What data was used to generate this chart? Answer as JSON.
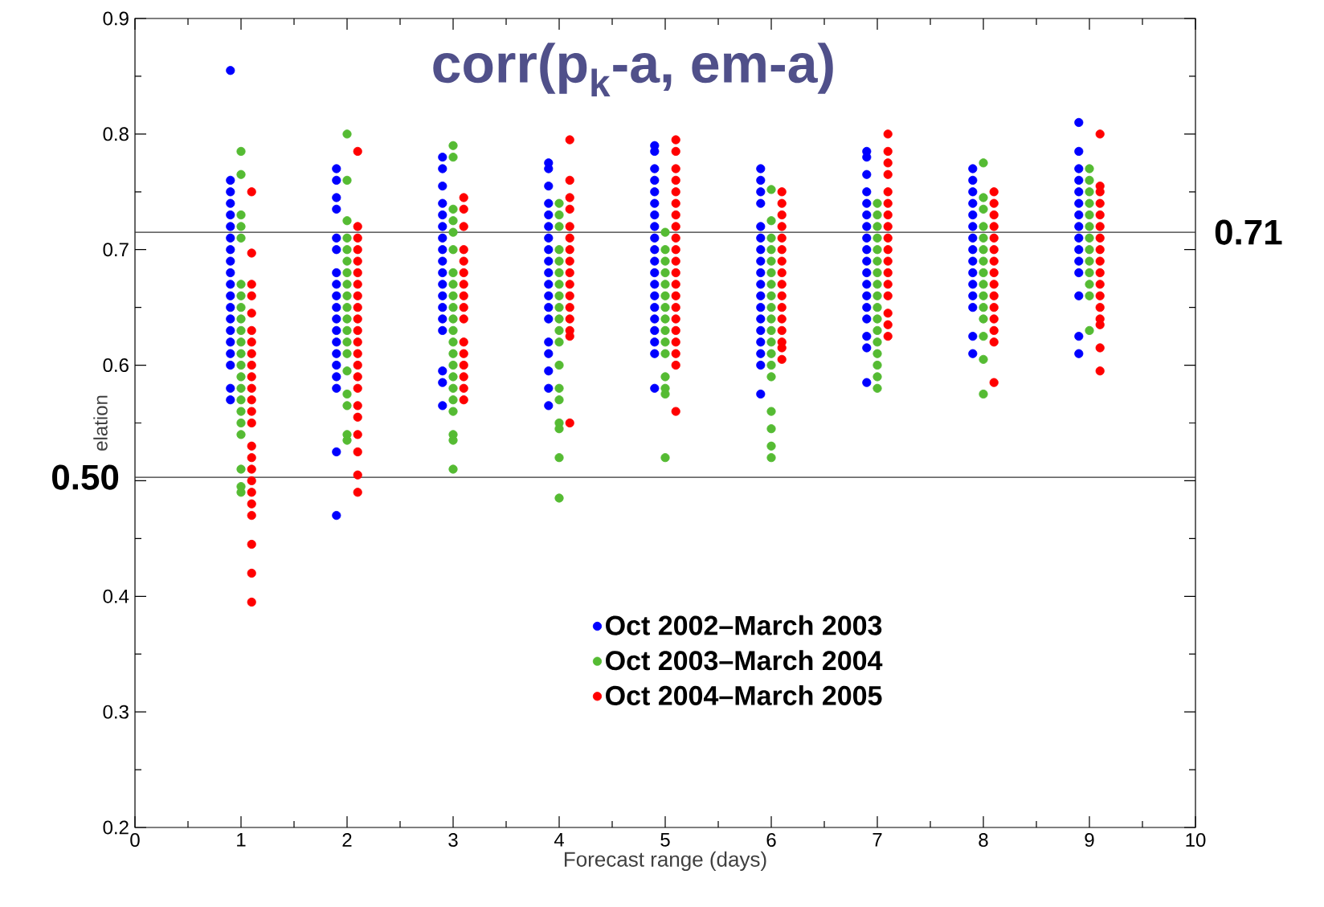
{
  "chart_data": {
    "type": "scatter",
    "title": "corr(p$_{k}$-a, em-a)",
    "xlabel": "Forecast range (days)",
    "ylabel": "elation",
    "xlim": [
      0,
      10
    ],
    "ylim": [
      0.2,
      0.9
    ],
    "xticks": [
      0,
      1,
      2,
      3,
      4,
      5,
      6,
      7,
      8,
      9,
      10
    ],
    "yticks": [
      0.2,
      0.3,
      0.4,
      {
        "value": 0.5,
        "label": null
      },
      0.6,
      0.7,
      0.8,
      0.9
    ],
    "marker": "circle",
    "legend": "bottom",
    "ref_lines": [
      {
        "axis": "y",
        "value": 0.715,
        "label": "0.71"
      },
      {
        "axis": "y",
        "value": 0.503,
        "label": "0.50"
      }
    ],
    "series": [
      {
        "name": "Oct 2002–March 2003",
        "color": "#0000ff",
        "x": [
          0.9,
          0.9,
          0.9,
          0.9,
          0.9,
          0.9,
          0.9,
          0.9,
          0.9,
          0.9,
          0.9,
          0.9,
          0.9,
          0.9,
          0.9,
          0.9,
          0.9,
          0.9,
          0.9,
          0.9,
          1.9,
          1.9,
          1.9,
          1.9,
          1.9,
          1.9,
          1.9,
          1.9,
          1.9,
          1.9,
          1.9,
          1.9,
          1.9,
          1.9,
          1.9,
          1.9,
          1.9,
          1.9,
          1.9,
          2.9,
          2.9,
          2.9,
          2.9,
          2.9,
          2.9,
          2.9,
          2.9,
          2.9,
          2.9,
          2.9,
          2.9,
          2.9,
          2.9,
          2.9,
          2.9,
          2.9,
          2.9,
          3.9,
          3.9,
          3.9,
          3.9,
          3.9,
          3.9,
          3.9,
          3.9,
          3.9,
          3.9,
          3.9,
          3.9,
          3.9,
          3.9,
          3.9,
          3.9,
          3.9,
          3.9,
          3.9,
          4.9,
          4.9,
          4.9,
          4.9,
          4.9,
          4.9,
          4.9,
          4.9,
          4.9,
          4.9,
          4.9,
          4.9,
          4.9,
          4.9,
          4.9,
          4.9,
          4.9,
          4.9,
          4.9,
          4.9,
          5.9,
          5.9,
          5.9,
          5.9,
          5.9,
          5.9,
          5.9,
          5.9,
          5.9,
          5.9,
          5.9,
          5.9,
          5.9,
          5.9,
          5.9,
          5.9,
          5.9,
          5.9,
          6.9,
          6.9,
          6.9,
          6.9,
          6.9,
          6.9,
          6.9,
          6.9,
          6.9,
          6.9,
          6.9,
          6.9,
          6.9,
          6.9,
          6.9,
          6.9,
          6.9,
          6.9,
          7.9,
          7.9,
          7.9,
          7.9,
          7.9,
          7.9,
          7.9,
          7.9,
          7.9,
          7.9,
          7.9,
          7.9,
          7.9,
          7.9,
          7.9,
          8.9,
          8.9,
          8.9,
          8.9,
          8.9,
          8.9,
          8.9,
          8.9,
          8.9,
          8.9,
          8.9,
          8.9,
          8.9,
          8.9,
          8.9
        ],
        "values": [
          0.855,
          0.76,
          0.75,
          0.74,
          0.73,
          0.72,
          0.71,
          0.7,
          0.69,
          0.68,
          0.67,
          0.66,
          0.65,
          0.64,
          0.63,
          0.62,
          0.61,
          0.6,
          0.58,
          0.57,
          0.77,
          0.76,
          0.745,
          0.735,
          0.71,
          0.7,
          0.68,
          0.67,
          0.66,
          0.65,
          0.64,
          0.63,
          0.62,
          0.61,
          0.6,
          0.59,
          0.58,
          0.525,
          0.47,
          0.78,
          0.77,
          0.755,
          0.74,
          0.73,
          0.72,
          0.71,
          0.7,
          0.69,
          0.68,
          0.67,
          0.66,
          0.65,
          0.64,
          0.63,
          0.595,
          0.585,
          0.565,
          0.775,
          0.77,
          0.755,
          0.74,
          0.73,
          0.72,
          0.71,
          0.7,
          0.69,
          0.68,
          0.67,
          0.66,
          0.65,
          0.64,
          0.62,
          0.61,
          0.595,
          0.58,
          0.565,
          0.79,
          0.785,
          0.77,
          0.76,
          0.75,
          0.74,
          0.73,
          0.72,
          0.71,
          0.7,
          0.69,
          0.68,
          0.67,
          0.66,
          0.65,
          0.64,
          0.63,
          0.62,
          0.61,
          0.58,
          0.77,
          0.76,
          0.75,
          0.74,
          0.72,
          0.71,
          0.7,
          0.69,
          0.68,
          0.67,
          0.66,
          0.65,
          0.64,
          0.63,
          0.62,
          0.61,
          0.6,
          0.575,
          0.785,
          0.78,
          0.765,
          0.75,
          0.74,
          0.73,
          0.72,
          0.71,
          0.7,
          0.69,
          0.68,
          0.67,
          0.66,
          0.65,
          0.64,
          0.625,
          0.615,
          0.585,
          0.77,
          0.76,
          0.75,
          0.74,
          0.73,
          0.72,
          0.71,
          0.7,
          0.69,
          0.68,
          0.67,
          0.66,
          0.65,
          0.625,
          0.61,
          0.81,
          0.785,
          0.77,
          0.76,
          0.75,
          0.74,
          0.73,
          0.72,
          0.71,
          0.7,
          0.69,
          0.68,
          0.66,
          0.625,
          0.61
        ]
      },
      {
        "name": "Oct 2003–March 2004",
        "color": "#55bb33",
        "x": [
          1,
          1,
          1,
          1,
          1,
          1,
          1,
          1,
          1,
          1,
          1,
          1,
          1,
          1,
          1,
          1,
          1,
          1,
          1,
          1,
          1,
          1,
          2,
          2,
          2,
          2,
          2,
          2,
          2,
          2,
          2,
          2,
          2,
          2,
          2,
          2,
          2,
          2,
          2,
          2,
          2,
          3,
          3,
          3,
          3,
          3,
          3,
          3,
          3,
          3,
          3,
          3,
          3,
          3,
          3,
          3,
          3,
          3,
          3,
          3,
          3,
          3,
          3,
          4,
          4,
          4,
          4,
          4,
          4,
          4,
          4,
          4,
          4,
          4,
          4,
          4,
          4,
          4,
          4,
          4,
          4,
          4,
          5,
          5,
          5,
          5,
          5,
          5,
          5,
          5,
          5,
          5,
          5,
          5,
          5,
          5,
          5,
          6,
          6,
          6,
          6,
          6,
          6,
          6,
          6,
          6,
          6,
          6,
          6,
          6,
          6,
          6,
          6,
          6,
          6,
          6,
          7,
          7,
          7,
          7,
          7,
          7,
          7,
          7,
          7,
          7,
          7,
          7,
          7,
          7,
          7,
          7,
          7,
          8,
          8,
          8,
          8,
          8,
          8,
          8,
          8,
          8,
          8,
          8,
          8,
          8,
          8,
          8,
          9,
          9,
          9,
          9,
          9,
          9,
          9,
          9,
          9,
          9,
          9,
          9,
          9
        ],
        "values": [
          0.785,
          0.765,
          0.73,
          0.72,
          0.71,
          0.67,
          0.66,
          0.65,
          0.64,
          0.63,
          0.62,
          0.61,
          0.6,
          0.59,
          0.58,
          0.57,
          0.56,
          0.55,
          0.54,
          0.51,
          0.495,
          0.49,
          0.8,
          0.76,
          0.725,
          0.71,
          0.7,
          0.69,
          0.68,
          0.67,
          0.66,
          0.65,
          0.64,
          0.63,
          0.62,
          0.61,
          0.595,
          0.575,
          0.565,
          0.54,
          0.535,
          0.79,
          0.78,
          0.735,
          0.725,
          0.715,
          0.7,
          0.68,
          0.67,
          0.66,
          0.65,
          0.64,
          0.63,
          0.62,
          0.61,
          0.6,
          0.59,
          0.58,
          0.57,
          0.56,
          0.54,
          0.535,
          0.51,
          0.74,
          0.73,
          0.72,
          0.7,
          0.69,
          0.68,
          0.67,
          0.66,
          0.65,
          0.64,
          0.63,
          0.62,
          0.6,
          0.58,
          0.57,
          0.55,
          0.545,
          0.52,
          0.485,
          0.715,
          0.7,
          0.69,
          0.68,
          0.67,
          0.66,
          0.65,
          0.64,
          0.63,
          0.62,
          0.61,
          0.59,
          0.58,
          0.575,
          0.52,
          0.752,
          0.725,
          0.71,
          0.7,
          0.69,
          0.68,
          0.67,
          0.66,
          0.65,
          0.64,
          0.63,
          0.62,
          0.61,
          0.6,
          0.59,
          0.56,
          0.545,
          0.53,
          0.52,
          0.74,
          0.73,
          0.72,
          0.71,
          0.7,
          0.69,
          0.68,
          0.67,
          0.66,
          0.65,
          0.64,
          0.63,
          0.62,
          0.61,
          0.6,
          0.59,
          0.58,
          0.775,
          0.745,
          0.735,
          0.72,
          0.71,
          0.7,
          0.69,
          0.68,
          0.67,
          0.66,
          0.65,
          0.64,
          0.625,
          0.605,
          0.575,
          0.77,
          0.76,
          0.75,
          0.74,
          0.73,
          0.72,
          0.71,
          0.7,
          0.69,
          0.68,
          0.67,
          0.66,
          0.63
        ]
      },
      {
        "name": "Oct 2004–March 2005",
        "color": "#ff0000",
        "x": [
          1.1,
          1.1,
          1.1,
          1.1,
          1.1,
          1.1,
          1.1,
          1.1,
          1.1,
          1.1,
          1.1,
          1.1,
          1.1,
          1.1,
          1.1,
          1.1,
          1.1,
          1.1,
          1.1,
          1.1,
          1.1,
          1.1,
          1.1,
          1.1,
          2.1,
          2.1,
          2.1,
          2.1,
          2.1,
          2.1,
          2.1,
          2.1,
          2.1,
          2.1,
          2.1,
          2.1,
          2.1,
          2.1,
          2.1,
          2.1,
          2.1,
          2.1,
          2.1,
          2.1,
          2.1,
          2.1,
          3.1,
          3.1,
          3.1,
          3.1,
          3.1,
          3.1,
          3.1,
          3.1,
          3.1,
          3.1,
          3.1,
          3.1,
          3.1,
          3.1,
          3.1,
          3.1,
          4.1,
          4.1,
          4.1,
          4.1,
          4.1,
          4.1,
          4.1,
          4.1,
          4.1,
          4.1,
          4.1,
          4.1,
          4.1,
          4.1,
          4.1,
          4.1,
          5.1,
          5.1,
          5.1,
          5.1,
          5.1,
          5.1,
          5.1,
          5.1,
          5.1,
          5.1,
          5.1,
          5.1,
          5.1,
          5.1,
          5.1,
          5.1,
          5.1,
          5.1,
          5.1,
          5.1,
          5.1,
          6.1,
          6.1,
          6.1,
          6.1,
          6.1,
          6.1,
          6.1,
          6.1,
          6.1,
          6.1,
          6.1,
          6.1,
          6.1,
          6.1,
          6.1,
          6.1,
          7.1,
          7.1,
          7.1,
          7.1,
          7.1,
          7.1,
          7.1,
          7.1,
          7.1,
          7.1,
          7.1,
          7.1,
          7.1,
          7.1,
          7.1,
          7.1,
          7.1,
          8.1,
          8.1,
          8.1,
          8.1,
          8.1,
          8.1,
          8.1,
          8.1,
          8.1,
          8.1,
          8.1,
          8.1,
          8.1,
          8.1,
          8.1,
          9.1,
          9.1,
          9.1,
          9.1,
          9.1,
          9.1,
          9.1,
          9.1,
          9.1,
          9.1,
          9.1,
          9.1,
          9.1,
          9.1,
          9.1,
          9.1,
          9.1
        ],
        "values": [
          0.75,
          0.697,
          0.67,
          0.66,
          0.645,
          0.63,
          0.62,
          0.61,
          0.6,
          0.59,
          0.58,
          0.57,
          0.56,
          0.55,
          0.53,
          0.52,
          0.51,
          0.5,
          0.49,
          0.48,
          0.47,
          0.445,
          0.42,
          0.395,
          0.785,
          0.72,
          0.71,
          0.7,
          0.69,
          0.68,
          0.67,
          0.66,
          0.65,
          0.64,
          0.63,
          0.62,
          0.61,
          0.6,
          0.59,
          0.58,
          0.565,
          0.555,
          0.54,
          0.525,
          0.505,
          0.49,
          0.745,
          0.735,
          0.72,
          0.7,
          0.69,
          0.68,
          0.67,
          0.66,
          0.65,
          0.64,
          0.62,
          0.61,
          0.6,
          0.59,
          0.58,
          0.57,
          0.795,
          0.76,
          0.745,
          0.735,
          0.72,
          0.71,
          0.7,
          0.69,
          0.68,
          0.67,
          0.66,
          0.65,
          0.64,
          0.63,
          0.625,
          0.55,
          0.795,
          0.785,
          0.77,
          0.76,
          0.75,
          0.74,
          0.73,
          0.72,
          0.71,
          0.7,
          0.69,
          0.68,
          0.67,
          0.66,
          0.65,
          0.64,
          0.63,
          0.62,
          0.61,
          0.6,
          0.56,
          0.75,
          0.74,
          0.73,
          0.72,
          0.71,
          0.7,
          0.69,
          0.68,
          0.67,
          0.66,
          0.65,
          0.64,
          0.63,
          0.62,
          0.615,
          0.605,
          0.8,
          0.785,
          0.775,
          0.765,
          0.75,
          0.74,
          0.73,
          0.72,
          0.71,
          0.7,
          0.69,
          0.68,
          0.67,
          0.66,
          0.645,
          0.635,
          0.625,
          0.75,
          0.74,
          0.73,
          0.72,
          0.71,
          0.7,
          0.69,
          0.68,
          0.67,
          0.66,
          0.65,
          0.64,
          0.63,
          0.62,
          0.585,
          0.8,
          0.755,
          0.75,
          0.74,
          0.73,
          0.72,
          0.71,
          0.7,
          0.69,
          0.68,
          0.67,
          0.66,
          0.65,
          0.64,
          0.635,
          0.615,
          0.595
        ]
      }
    ]
  }
}
